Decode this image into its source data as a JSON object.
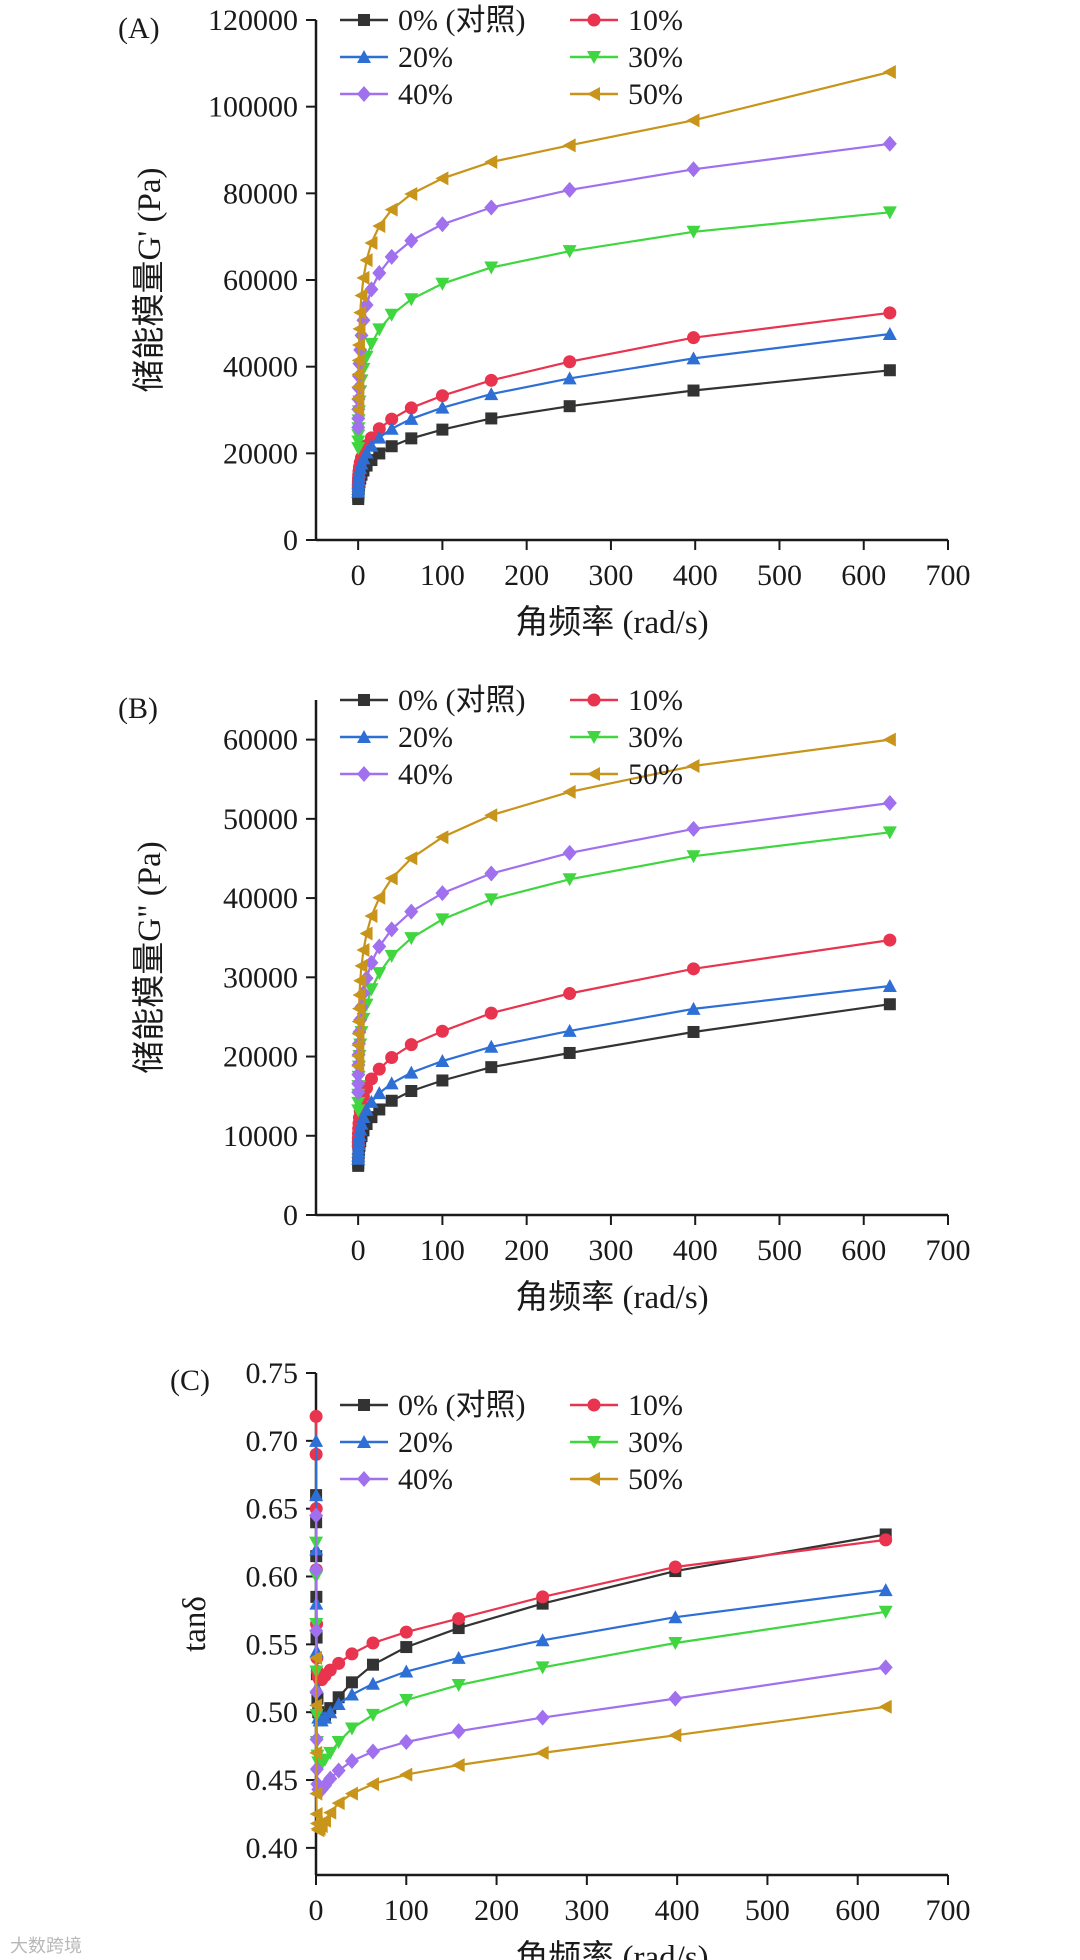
{
  "watermark": "大数跨境",
  "chart_data": [
    {
      "type": "line",
      "panel_label": "(A)",
      "xlabel": "角频率 (rad/s)",
      "ylabel": "储能模量G' (Pa)",
      "xlim": [
        -50,
        700
      ],
      "ylim": [
        0,
        120000
      ],
      "xticks": [
        0,
        100,
        200,
        300,
        400,
        500,
        600,
        700
      ],
      "yticks": [
        0,
        20000,
        40000,
        60000,
        80000,
        100000,
        120000
      ],
      "x": [
        0.1,
        0.158,
        0.251,
        0.398,
        0.631,
        1,
        1.58,
        2.51,
        3.98,
        6.31,
        10,
        15.8,
        25.1,
        39.8,
        63.1,
        100,
        158,
        251,
        398,
        631
      ],
      "series": [
        {
          "name": "0% (对照)",
          "color": "#333333",
          "marker": "square",
          "values": [
            9455,
            10062,
            10618,
            11230,
            11895,
            12611,
            13364,
            14183,
            15072,
            16045,
            17175,
            18448,
            19972,
            21636,
            23454,
            25476,
            28055,
            30879,
            34491,
            39173
          ]
        },
        {
          "name": "10%",
          "color": "#e8344e",
          "marker": "circle",
          "values": [
            12000,
            12745,
            13430,
            14160,
            14990,
            15880,
            16837,
            17865,
            19000,
            20300,
            21820,
            23570,
            25670,
            27900,
            30480,
            33300,
            36850,
            41140,
            46690,
            52420
          ]
        },
        {
          "name": "20%",
          "color": "#2e6fd6",
          "marker": "triangle-up",
          "values": [
            11140,
            11805,
            12440,
            13125,
            13880,
            14700,
            15610,
            16590,
            17650,
            18840,
            20200,
            21740,
            23620,
            25680,
            27960,
            30540,
            33660,
            37300,
            41900,
            47550
          ]
        },
        {
          "name": "30%",
          "color": "#3fd63f",
          "marker": "triangle-down",
          "values": [
            21200,
            22720,
            24180,
            25780,
            27620,
            29680,
            31950,
            34320,
            36830,
            39460,
            42290,
            45260,
            48600,
            51970,
            55550,
            59140,
            62880,
            66650,
            71130,
            75620
          ]
        },
        {
          "name": "40%",
          "color": "#a070ee",
          "marker": "diamond",
          "values": [
            26000,
            28050,
            30160,
            32510,
            35130,
            37840,
            40730,
            43880,
            47230,
            50700,
            54220,
            57850,
            61620,
            65340,
            69100,
            72860,
            76740,
            80790,
            85550,
            91430
          ]
        },
        {
          "name": "50%",
          "color": "#c8941a",
          "marker": "triangle-left",
          "values": [
            30100,
            32640,
            35320,
            38230,
            41460,
            44990,
            48720,
            52480,
            56410,
            60500,
            64580,
            68530,
            72470,
            76240,
            79840,
            83450,
            87220,
            91080,
            96850,
            108000
          ]
        }
      ],
      "legend_position": "top-left"
    },
    {
      "type": "line",
      "panel_label": "(B)",
      "xlabel": "角频率 (rad/s)",
      "ylabel": "储能模量G\" (Pa)",
      "xlim": [
        -50,
        700
      ],
      "ylim": [
        0,
        65000
      ],
      "xticks": [
        0,
        100,
        200,
        300,
        400,
        500,
        600,
        700
      ],
      "yticks": [
        0,
        10000,
        20000,
        30000,
        40000,
        50000,
        60000
      ],
      "x": [
        0.1,
        0.158,
        0.251,
        0.398,
        0.631,
        1,
        1.58,
        2.51,
        3.98,
        6.31,
        10,
        15.8,
        25.1,
        39.8,
        63.1,
        100,
        158,
        251,
        398,
        631
      ],
      "series": [
        {
          "name": "0% (对照)",
          "color": "#333333",
          "marker": "square",
          "values": [
            6200,
            6560,
            6930,
            7330,
            7770,
            8230,
            8750,
            9320,
            9960,
            10680,
            11480,
            12350,
            13320,
            14420,
            15650,
            16980,
            18660,
            20450,
            23100,
            26600
          ]
        },
        {
          "name": "10%",
          "color": "#e8344e",
          "marker": "circle",
          "values": [
            8700,
            9200,
            9720,
            10280,
            10900,
            11560,
            12290,
            13100,
            13990,
            14970,
            16030,
            17170,
            18410,
            19880,
            21500,
            23190,
            25480,
            27950,
            31070,
            34700
          ]
        },
        {
          "name": "20%",
          "color": "#2e6fd6",
          "marker": "triangle-up",
          "values": [
            7100,
            7510,
            7950,
            8420,
            8940,
            9490,
            10100,
            10790,
            11540,
            12370,
            13290,
            14280,
            15380,
            16610,
            17970,
            19430,
            21230,
            23240,
            26010,
            28900
          ]
        },
        {
          "name": "30%",
          "color": "#3fd63f",
          "marker": "triangle-down",
          "values": [
            13200,
            14150,
            15170,
            16260,
            17450,
            18720,
            20070,
            21520,
            23080,
            24760,
            26560,
            28490,
            30530,
            32700,
            34950,
            37310,
            39830,
            42370,
            45280,
            48300
          ]
        },
        {
          "name": "40%",
          "color": "#a070ee",
          "marker": "diamond",
          "values": [
            15500,
            16570,
            17710,
            18930,
            20220,
            21610,
            23080,
            24630,
            26270,
            28020,
            29880,
            31840,
            33890,
            36050,
            38290,
            40620,
            43100,
            45700,
            48730,
            52000
          ]
        },
        {
          "name": "50%",
          "color": "#c8941a",
          "marker": "triangle-left",
          "values": [
            18800,
            20070,
            21430,
            22880,
            24420,
            26050,
            27770,
            29560,
            31450,
            33440,
            35530,
            37730,
            40040,
            42480,
            45020,
            47680,
            50460,
            53400,
            56670,
            60000
          ]
        }
      ],
      "legend_position": "top-left"
    },
    {
      "type": "line",
      "panel_label": "(C)",
      "xlabel": "角频率 (rad/s)",
      "ylabel": "tanδ",
      "xlim": [
        0,
        700
      ],
      "ylim": [
        0.38,
        0.75
      ],
      "xticks": [
        0,
        100,
        200,
        300,
        400,
        500,
        600,
        700
      ],
      "yticks": [
        0.4,
        0.45,
        0.5,
        0.55,
        0.6,
        0.65,
        0.7,
        0.75
      ],
      "ytick_labels": [
        "0.40",
        "0.45",
        "0.50",
        "0.55",
        "0.60",
        "0.65",
        "0.70",
        "0.75"
      ],
      "x": [
        0.1,
        0.158,
        0.251,
        0.398,
        0.631,
        1,
        1.58,
        2.51,
        3.98,
        6.31,
        10,
        15.8,
        25.1,
        39.8,
        63.1,
        100,
        158,
        251,
        398,
        631
      ],
      "series": [
        {
          "name": "0% (对照)",
          "color": "#333333",
          "marker": "square",
          "values": [
            0.66,
            0.64,
            0.615,
            0.585,
            0.555,
            0.528,
            0.51,
            0.5,
            0.498,
            0.497,
            0.498,
            0.503,
            0.511,
            0.522,
            0.535,
            0.548,
            0.562,
            0.58,
            0.604,
            0.631
          ]
        },
        {
          "name": "10%",
          "color": "#e8344e",
          "marker": "circle",
          "values": [
            0.718,
            0.69,
            0.65,
            0.605,
            0.565,
            0.54,
            0.53,
            0.526,
            0.524,
            0.524,
            0.527,
            0.531,
            0.536,
            0.543,
            0.551,
            0.559,
            0.569,
            0.585,
            0.607,
            0.627
          ]
        },
        {
          "name": "20%",
          "color": "#2e6fd6",
          "marker": "triangle-up",
          "values": [
            0.7,
            0.66,
            0.62,
            0.58,
            0.545,
            0.518,
            0.503,
            0.496,
            0.494,
            0.494,
            0.496,
            0.5,
            0.506,
            0.513,
            0.521,
            0.53,
            0.54,
            0.553,
            0.57,
            0.59
          ]
        },
        {
          "name": "30%",
          "color": "#3fd63f",
          "marker": "triangle-down",
          "values": [
            0.625,
            0.6,
            0.565,
            0.53,
            0.498,
            0.478,
            0.468,
            0.463,
            0.462,
            0.462,
            0.465,
            0.47,
            0.478,
            0.488,
            0.498,
            0.509,
            0.52,
            0.533,
            0.551,
            0.574
          ]
        },
        {
          "name": "40%",
          "color": "#a070ee",
          "marker": "diamond",
          "values": [
            0.645,
            0.605,
            0.56,
            0.515,
            0.48,
            0.458,
            0.447,
            0.443,
            0.442,
            0.443,
            0.446,
            0.451,
            0.457,
            0.464,
            0.471,
            0.478,
            0.486,
            0.496,
            0.51,
            0.533
          ]
        },
        {
          "name": "50%",
          "color": "#c8941a",
          "marker": "triangle-left",
          "values": [
            0.54,
            0.505,
            0.47,
            0.44,
            0.425,
            0.418,
            0.414,
            0.413,
            0.414,
            0.416,
            0.42,
            0.426,
            0.433,
            0.44,
            0.447,
            0.454,
            0.461,
            0.47,
            0.483,
            0.504
          ]
        }
      ],
      "legend_position": "top-left"
    }
  ]
}
